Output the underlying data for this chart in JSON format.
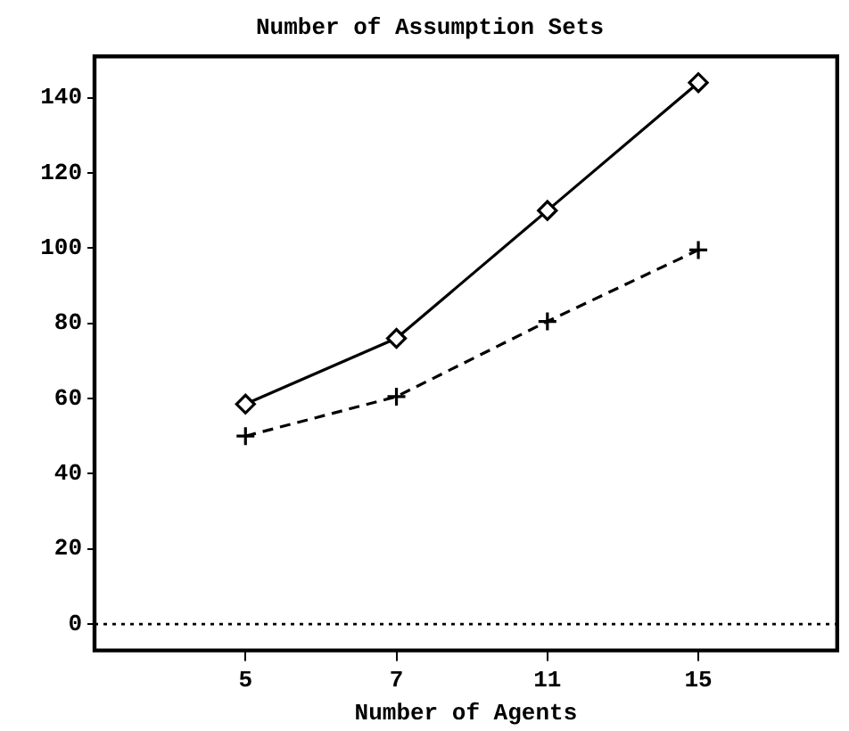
{
  "chart_data": {
    "type": "line",
    "title": "Number of Assumption Sets",
    "xlabel": "Number of Agents",
    "categories": [
      "5",
      "7",
      "11",
      "15"
    ],
    "series": [
      {
        "color": "#000000",
        "values": [
          58.5,
          76,
          110,
          144
        ],
        "marker": "diamond",
        "line_style": "solid"
      },
      {
        "color": "#000000",
        "values": [
          50,
          60.5,
          80.5,
          99.5
        ],
        "marker": "cross",
        "line_style": "dashed"
      }
    ],
    "ylim": [
      -7,
      151
    ],
    "yticks": [
      0,
      20,
      40,
      60,
      80,
      100,
      120,
      140
    ],
    "grid": false,
    "legend": false,
    "ref_lines": [
      {
        "axis": "y",
        "value": 0,
        "line_style": "dotted",
        "color": "#000000"
      }
    ]
  }
}
